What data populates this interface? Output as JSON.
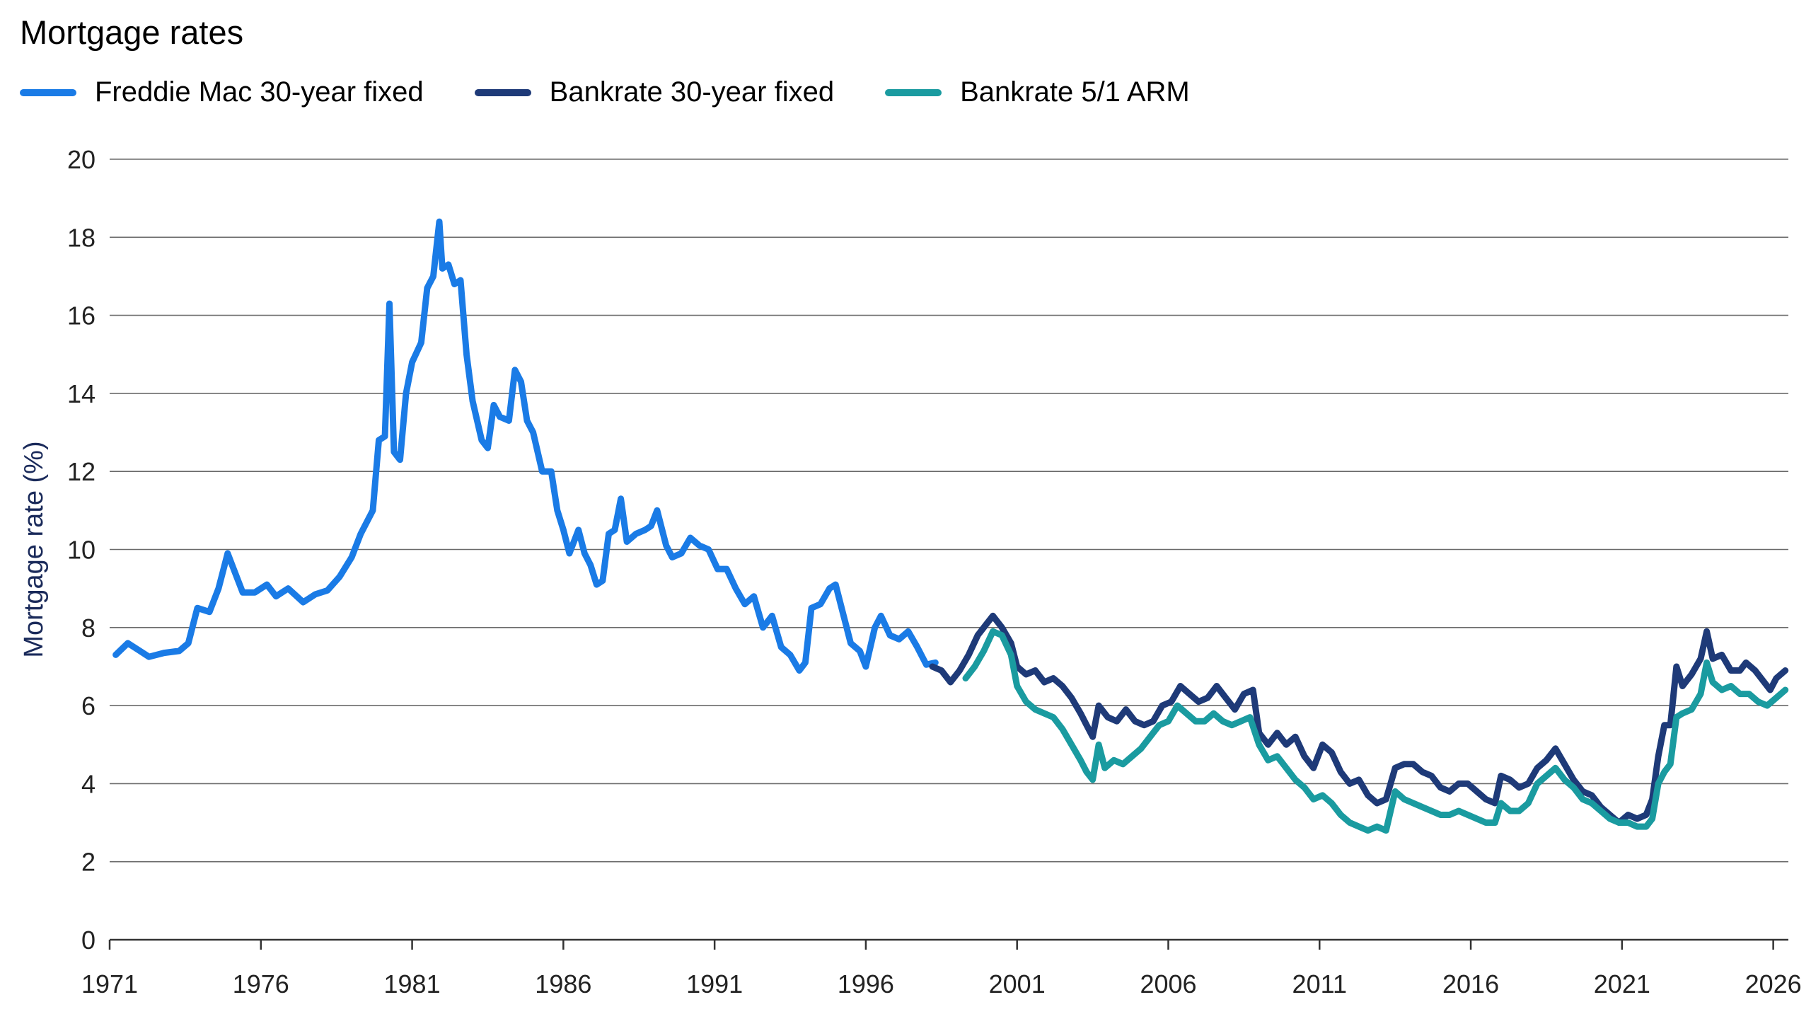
{
  "chart_data": {
    "type": "line",
    "title": "Mortgage rates",
    "ylabel": "Mortgage rate (%)",
    "xlabel": "",
    "xlim": [
      1971,
      2026.5
    ],
    "ylim": [
      0,
      20
    ],
    "x_ticks": [
      1971,
      1976,
      1981,
      1986,
      1991,
      1996,
      2001,
      2006,
      2011,
      2016,
      2021,
      2026
    ],
    "y_ticks": [
      0,
      2,
      4,
      6,
      8,
      10,
      12,
      14,
      16,
      18,
      20
    ],
    "grid": true,
    "legend_position": "top-left",
    "series": [
      {
        "name": "Freddie Mac 30-year fixed",
        "color": "#1a7be6",
        "points": [
          [
            1971.2,
            7.3
          ],
          [
            1971.6,
            7.6
          ],
          [
            1972.0,
            7.4
          ],
          [
            1972.3,
            7.25
          ],
          [
            1972.8,
            7.35
          ],
          [
            1973.3,
            7.4
          ],
          [
            1973.6,
            7.6
          ],
          [
            1973.9,
            8.5
          ],
          [
            1974.3,
            8.4
          ],
          [
            1974.6,
            9.0
          ],
          [
            1974.9,
            9.9
          ],
          [
            1975.1,
            9.5
          ],
          [
            1975.4,
            8.9
          ],
          [
            1975.8,
            8.9
          ],
          [
            1976.2,
            9.1
          ],
          [
            1976.5,
            8.8
          ],
          [
            1976.9,
            9.0
          ],
          [
            1977.4,
            8.65
          ],
          [
            1977.8,
            8.85
          ],
          [
            1978.2,
            8.95
          ],
          [
            1978.6,
            9.3
          ],
          [
            1979.0,
            9.8
          ],
          [
            1979.3,
            10.4
          ],
          [
            1979.7,
            11.0
          ],
          [
            1979.9,
            12.8
          ],
          [
            1980.1,
            12.9
          ],
          [
            1980.25,
            16.3
          ],
          [
            1980.4,
            12.5
          ],
          [
            1980.6,
            12.3
          ],
          [
            1980.8,
            14.0
          ],
          [
            1981.0,
            14.8
          ],
          [
            1981.3,
            15.3
          ],
          [
            1981.5,
            16.7
          ],
          [
            1981.7,
            17.0
          ],
          [
            1981.9,
            18.4
          ],
          [
            1982.0,
            17.2
          ],
          [
            1982.2,
            17.3
          ],
          [
            1982.4,
            16.8
          ],
          [
            1982.6,
            16.9
          ],
          [
            1982.8,
            15.0
          ],
          [
            1983.0,
            13.8
          ],
          [
            1983.3,
            12.8
          ],
          [
            1983.5,
            12.6
          ],
          [
            1983.7,
            13.7
          ],
          [
            1983.9,
            13.4
          ],
          [
            1984.2,
            13.3
          ],
          [
            1984.4,
            14.6
          ],
          [
            1984.6,
            14.3
          ],
          [
            1984.8,
            13.3
          ],
          [
            1985.0,
            13.0
          ],
          [
            1985.3,
            12.0
          ],
          [
            1985.6,
            12.0
          ],
          [
            1985.8,
            11.0
          ],
          [
            1986.0,
            10.5
          ],
          [
            1986.2,
            9.9
          ],
          [
            1986.5,
            10.5
          ],
          [
            1986.7,
            9.9
          ],
          [
            1986.9,
            9.6
          ],
          [
            1987.1,
            9.1
          ],
          [
            1987.3,
            9.2
          ],
          [
            1987.5,
            10.4
          ],
          [
            1987.7,
            10.5
          ],
          [
            1987.9,
            11.3
          ],
          [
            1988.1,
            10.2
          ],
          [
            1988.4,
            10.4
          ],
          [
            1988.7,
            10.5
          ],
          [
            1988.9,
            10.6
          ],
          [
            1989.1,
            11.0
          ],
          [
            1989.4,
            10.1
          ],
          [
            1989.6,
            9.8
          ],
          [
            1989.9,
            9.9
          ],
          [
            1990.2,
            10.3
          ],
          [
            1990.5,
            10.1
          ],
          [
            1990.8,
            10.0
          ],
          [
            1991.1,
            9.5
          ],
          [
            1991.4,
            9.5
          ],
          [
            1991.7,
            9.0
          ],
          [
            1992.0,
            8.6
          ],
          [
            1992.3,
            8.8
          ],
          [
            1992.6,
            8.0
          ],
          [
            1992.9,
            8.3
          ],
          [
            1993.2,
            7.5
          ],
          [
            1993.5,
            7.3
          ],
          [
            1993.8,
            6.9
          ],
          [
            1994.0,
            7.1
          ],
          [
            1994.2,
            8.5
          ],
          [
            1994.5,
            8.6
          ],
          [
            1994.8,
            9.0
          ],
          [
            1995.0,
            9.1
          ],
          [
            1995.2,
            8.5
          ],
          [
            1995.5,
            7.6
          ],
          [
            1995.8,
            7.4
          ],
          [
            1996.0,
            7.0
          ],
          [
            1996.3,
            8.0
          ],
          [
            1996.5,
            8.3
          ],
          [
            1996.8,
            7.8
          ],
          [
            1997.1,
            7.7
          ],
          [
            1997.4,
            7.9
          ],
          [
            1997.7,
            7.5
          ],
          [
            1998.0,
            7.05
          ],
          [
            1998.3,
            7.1
          ]
        ]
      },
      {
        "name": "Bankrate 30-year fixed",
        "color": "#1e3a78",
        "points": [
          [
            1998.2,
            7.0
          ],
          [
            1998.5,
            6.9
          ],
          [
            1998.8,
            6.6
          ],
          [
            1999.1,
            6.9
          ],
          [
            1999.4,
            7.3
          ],
          [
            1999.7,
            7.8
          ],
          [
            2000.0,
            8.1
          ],
          [
            2000.2,
            8.3
          ],
          [
            2000.5,
            8.0
          ],
          [
            2000.8,
            7.6
          ],
          [
            2001.0,
            7.0
          ],
          [
            2001.3,
            6.8
          ],
          [
            2001.6,
            6.9
          ],
          [
            2001.9,
            6.6
          ],
          [
            2002.2,
            6.7
          ],
          [
            2002.5,
            6.5
          ],
          [
            2002.8,
            6.2
          ],
          [
            2003.1,
            5.8
          ],
          [
            2003.3,
            5.5
          ],
          [
            2003.5,
            5.2
          ],
          [
            2003.7,
            6.0
          ],
          [
            2004.0,
            5.7
          ],
          [
            2004.3,
            5.6
          ],
          [
            2004.6,
            5.9
          ],
          [
            2004.9,
            5.6
          ],
          [
            2005.2,
            5.5
          ],
          [
            2005.5,
            5.6
          ],
          [
            2005.8,
            6.0
          ],
          [
            2006.1,
            6.1
          ],
          [
            2006.4,
            6.5
          ],
          [
            2006.7,
            6.3
          ],
          [
            2007.0,
            6.1
          ],
          [
            2007.3,
            6.2
          ],
          [
            2007.6,
            6.5
          ],
          [
            2007.9,
            6.2
          ],
          [
            2008.2,
            5.9
          ],
          [
            2008.5,
            6.3
          ],
          [
            2008.8,
            6.4
          ],
          [
            2009.0,
            5.3
          ],
          [
            2009.3,
            5.0
          ],
          [
            2009.6,
            5.3
          ],
          [
            2009.9,
            5.0
          ],
          [
            2010.2,
            5.2
          ],
          [
            2010.5,
            4.7
          ],
          [
            2010.8,
            4.4
          ],
          [
            2011.1,
            5.0
          ],
          [
            2011.4,
            4.8
          ],
          [
            2011.7,
            4.3
          ],
          [
            2012.0,
            4.0
          ],
          [
            2012.3,
            4.1
          ],
          [
            2012.6,
            3.7
          ],
          [
            2012.9,
            3.5
          ],
          [
            2013.2,
            3.6
          ],
          [
            2013.5,
            4.4
          ],
          [
            2013.8,
            4.5
          ],
          [
            2014.1,
            4.5
          ],
          [
            2014.4,
            4.3
          ],
          [
            2014.7,
            4.2
          ],
          [
            2015.0,
            3.9
          ],
          [
            2015.3,
            3.8
          ],
          [
            2015.6,
            4.0
          ],
          [
            2015.9,
            4.0
          ],
          [
            2016.2,
            3.8
          ],
          [
            2016.5,
            3.6
          ],
          [
            2016.8,
            3.5
          ],
          [
            2017.0,
            4.2
          ],
          [
            2017.3,
            4.1
          ],
          [
            2017.6,
            3.9
          ],
          [
            2017.9,
            4.0
          ],
          [
            2018.2,
            4.4
          ],
          [
            2018.5,
            4.6
          ],
          [
            2018.8,
            4.9
          ],
          [
            2019.1,
            4.5
          ],
          [
            2019.4,
            4.1
          ],
          [
            2019.7,
            3.8
          ],
          [
            2020.0,
            3.7
          ],
          [
            2020.3,
            3.4
          ],
          [
            2020.6,
            3.2
          ],
          [
            2020.9,
            3.0
          ],
          [
            2021.2,
            3.2
          ],
          [
            2021.5,
            3.1
          ],
          [
            2021.8,
            3.2
          ],
          [
            2022.0,
            3.6
          ],
          [
            2022.2,
            4.7
          ],
          [
            2022.4,
            5.5
          ],
          [
            2022.6,
            5.5
          ],
          [
            2022.8,
            7.0
          ],
          [
            2023.0,
            6.5
          ],
          [
            2023.3,
            6.8
          ],
          [
            2023.6,
            7.2
          ],
          [
            2023.8,
            7.9
          ],
          [
            2024.0,
            7.2
          ],
          [
            2024.3,
            7.3
          ],
          [
            2024.6,
            6.9
          ],
          [
            2024.9,
            6.9
          ],
          [
            2025.1,
            7.1
          ],
          [
            2025.4,
            6.9
          ],
          [
            2025.7,
            6.6
          ],
          [
            2025.9,
            6.4
          ],
          [
            2026.1,
            6.7
          ],
          [
            2026.4,
            6.9
          ]
        ]
      },
      {
        "name": "Bankrate 5/1 ARM",
        "color": "#1a9ba0",
        "points": [
          [
            1999.3,
            6.7
          ],
          [
            1999.6,
            7.0
          ],
          [
            1999.9,
            7.4
          ],
          [
            2000.2,
            7.9
          ],
          [
            2000.5,
            7.8
          ],
          [
            2000.8,
            7.3
          ],
          [
            2001.0,
            6.5
          ],
          [
            2001.3,
            6.1
          ],
          [
            2001.6,
            5.9
          ],
          [
            2001.9,
            5.8
          ],
          [
            2002.2,
            5.7
          ],
          [
            2002.5,
            5.4
          ],
          [
            2002.8,
            5.0
          ],
          [
            2003.1,
            4.6
          ],
          [
            2003.3,
            4.3
          ],
          [
            2003.5,
            4.1
          ],
          [
            2003.7,
            5.0
          ],
          [
            2003.9,
            4.4
          ],
          [
            2004.2,
            4.6
          ],
          [
            2004.5,
            4.5
          ],
          [
            2004.8,
            4.7
          ],
          [
            2005.1,
            4.9
          ],
          [
            2005.4,
            5.2
          ],
          [
            2005.7,
            5.5
          ],
          [
            2006.0,
            5.6
          ],
          [
            2006.3,
            6.0
          ],
          [
            2006.6,
            5.8
          ],
          [
            2006.9,
            5.6
          ],
          [
            2007.2,
            5.6
          ],
          [
            2007.5,
            5.8
          ],
          [
            2007.8,
            5.6
          ],
          [
            2008.1,
            5.5
          ],
          [
            2008.4,
            5.6
          ],
          [
            2008.7,
            5.7
          ],
          [
            2009.0,
            5.0
          ],
          [
            2009.3,
            4.6
          ],
          [
            2009.6,
            4.7
          ],
          [
            2009.9,
            4.4
          ],
          [
            2010.2,
            4.1
          ],
          [
            2010.5,
            3.9
          ],
          [
            2010.8,
            3.6
          ],
          [
            2011.1,
            3.7
          ],
          [
            2011.4,
            3.5
          ],
          [
            2011.7,
            3.2
          ],
          [
            2012.0,
            3.0
          ],
          [
            2012.3,
            2.9
          ],
          [
            2012.6,
            2.8
          ],
          [
            2012.9,
            2.9
          ],
          [
            2013.2,
            2.8
          ],
          [
            2013.5,
            3.8
          ],
          [
            2013.8,
            3.6
          ],
          [
            2014.1,
            3.5
          ],
          [
            2014.4,
            3.4
          ],
          [
            2014.7,
            3.3
          ],
          [
            2015.0,
            3.2
          ],
          [
            2015.3,
            3.2
          ],
          [
            2015.6,
            3.3
          ],
          [
            2015.9,
            3.2
          ],
          [
            2016.2,
            3.1
          ],
          [
            2016.5,
            3.0
          ],
          [
            2016.8,
            3.0
          ],
          [
            2017.0,
            3.5
          ],
          [
            2017.3,
            3.3
          ],
          [
            2017.6,
            3.3
          ],
          [
            2017.9,
            3.5
          ],
          [
            2018.2,
            4.0
          ],
          [
            2018.5,
            4.2
          ],
          [
            2018.8,
            4.4
          ],
          [
            2019.1,
            4.1
          ],
          [
            2019.4,
            3.9
          ],
          [
            2019.7,
            3.6
          ],
          [
            2020.0,
            3.5
          ],
          [
            2020.3,
            3.3
          ],
          [
            2020.6,
            3.1
          ],
          [
            2020.9,
            3.0
          ],
          [
            2021.2,
            3.0
          ],
          [
            2021.5,
            2.9
          ],
          [
            2021.8,
            2.9
          ],
          [
            2022.0,
            3.1
          ],
          [
            2022.2,
            4.0
          ],
          [
            2022.4,
            4.3
          ],
          [
            2022.6,
            4.5
          ],
          [
            2022.8,
            5.7
          ],
          [
            2023.0,
            5.8
          ],
          [
            2023.3,
            5.9
          ],
          [
            2023.6,
            6.3
          ],
          [
            2023.8,
            7.1
          ],
          [
            2024.0,
            6.6
          ],
          [
            2024.3,
            6.4
          ],
          [
            2024.6,
            6.5
          ],
          [
            2024.9,
            6.3
          ],
          [
            2025.2,
            6.3
          ],
          [
            2025.5,
            6.1
          ],
          [
            2025.8,
            6.0
          ],
          [
            2026.1,
            6.2
          ],
          [
            2026.4,
            6.4
          ]
        ]
      }
    ]
  }
}
